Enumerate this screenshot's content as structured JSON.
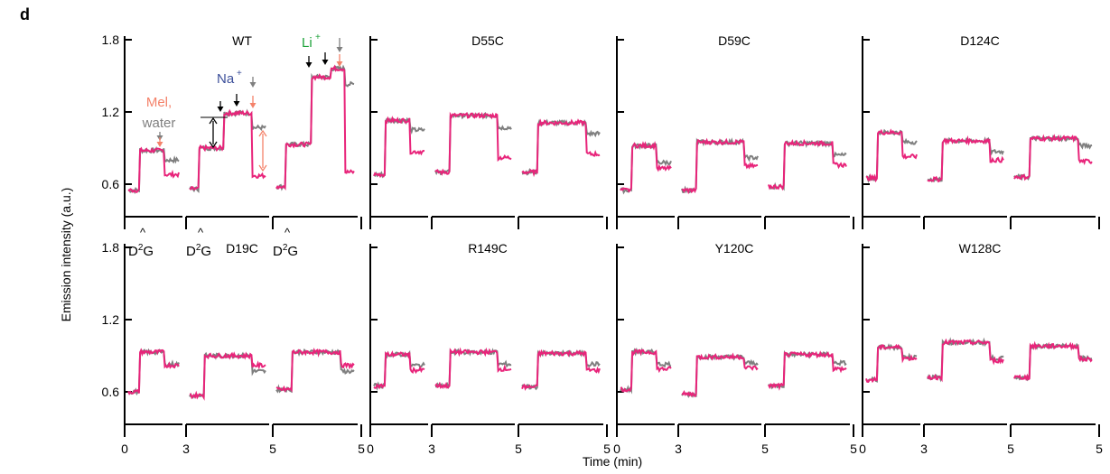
{
  "figure": {
    "panel_letter": "d",
    "ylabel": "Emission intensity (a.u.)",
    "xlabel": "Time (min)"
  },
  "colors": {
    "fluorescence_trace": "#e8247a",
    "water_trace": "#7f7f7f",
    "mel_label": "#f4826a",
    "na_label": "#3c4f9a",
    "li_label": "#1ea33a",
    "water_label": "#7f7f7f",
    "axis": "#000000"
  },
  "annotations": {
    "mel": "Mel,",
    "water": "water",
    "na": "Na",
    "li": "Li",
    "superscript_plus": "+",
    "d2g_prefix": "D",
    "d2g_sup": "2",
    "d2g_suffix": "G",
    "caret": "^"
  },
  "chart_data": {
    "type": "line",
    "layout": "2 rows x 4 columns of panels, each panel with 3 consecutive segments",
    "ylim": [
      0.5,
      1.8
    ],
    "yticks": [
      0.6,
      1.2,
      1.8
    ],
    "ytick_labels": [
      "0.6",
      "1.2",
      "1.8"
    ],
    "segment_xticks": [
      [
        "0",
        "3"
      ],
      [
        "3",
        "5"
      ],
      [
        "5",
        ""
      ]
    ],
    "bottom_row_xtick_labels": [
      "0",
      "3",
      "5"
    ],
    "series_note": "pink = emission intensity in presence of compound; grey = water control",
    "panels": [
      {
        "title": "WT",
        "segments": [
          {
            "base": 0.55,
            "step": 0.88,
            "end_pink": 0.68,
            "end_grey": 0.8
          },
          {
            "base": 0.56,
            "step": 0.9,
            "mid": 1.19,
            "end_pink": 0.67,
            "end_grey": 1.07
          },
          {
            "base": 0.58,
            "step": 0.93,
            "mid": 1.49,
            "mid2": 1.56,
            "end_pink": 0.7,
            "end_grey": 1.43
          }
        ]
      },
      {
        "title": "D55C",
        "segments": [
          {
            "base": 0.68,
            "step": 1.13,
            "end_pink": 0.87,
            "end_grey": 1.05
          },
          {
            "base": 0.7,
            "step": 1.17,
            "end_pink": 0.82,
            "end_grey": 1.07
          },
          {
            "base": 0.7,
            "step": 1.11,
            "end_pink": 0.85,
            "end_grey": 1.02
          }
        ]
      },
      {
        "title": "D59C",
        "segments": [
          {
            "base": 0.55,
            "step": 0.92,
            "end_pink": 0.73,
            "end_grey": 0.78
          },
          {
            "base": 0.55,
            "step": 0.95,
            "end_pink": 0.75,
            "end_grey": 0.82
          },
          {
            "base": 0.58,
            "step": 0.94,
            "end_pink": 0.76,
            "end_grey": 0.84
          }
        ]
      },
      {
        "title": "D124C",
        "segments": [
          {
            "base": 0.65,
            "step": 1.03,
            "end_pink": 0.83,
            "end_grey": 0.95
          },
          {
            "base": 0.64,
            "step": 0.96,
            "end_pink": 0.8,
            "end_grey": 0.87
          },
          {
            "base": 0.66,
            "step": 0.98,
            "end_pink": 0.79,
            "end_grey": 0.92
          }
        ]
      },
      {
        "title": "D19C",
        "segments": [
          {
            "base": 0.6,
            "step": 0.93,
            "end_pink": 0.82,
            "end_grey": 0.83
          },
          {
            "base": 0.57,
            "step": 0.9,
            "end_pink": 0.82,
            "end_grey": 0.77
          },
          {
            "base": 0.62,
            "step": 0.93,
            "end_pink": 0.82,
            "end_grey": 0.77
          }
        ]
      },
      {
        "title": "R149C",
        "segments": [
          {
            "base": 0.65,
            "step": 0.91,
            "end_pink": 0.78,
            "end_grey": 0.82
          },
          {
            "base": 0.65,
            "step": 0.93,
            "end_pink": 0.79,
            "end_grey": 0.83
          },
          {
            "base": 0.64,
            "step": 0.92,
            "end_pink": 0.78,
            "end_grey": 0.83
          }
        ]
      },
      {
        "title": "Y120C",
        "segments": [
          {
            "base": 0.62,
            "step": 0.93,
            "end_pink": 0.79,
            "end_grey": 0.83
          },
          {
            "base": 0.58,
            "step": 0.89,
            "end_pink": 0.8,
            "end_grey": 0.84
          },
          {
            "base": 0.65,
            "step": 0.91,
            "end_pink": 0.79,
            "end_grey": 0.84
          }
        ]
      },
      {
        "title": "W128C",
        "segments": [
          {
            "base": 0.7,
            "step": 0.97,
            "end_pink": 0.88,
            "end_grey": 0.89
          },
          {
            "base": 0.72,
            "step": 1.01,
            "end_pink": 0.86,
            "end_grey": 0.88
          },
          {
            "base": 0.72,
            "step": 0.98,
            "end_pink": 0.87,
            "end_grey": 0.88
          }
        ]
      }
    ]
  }
}
